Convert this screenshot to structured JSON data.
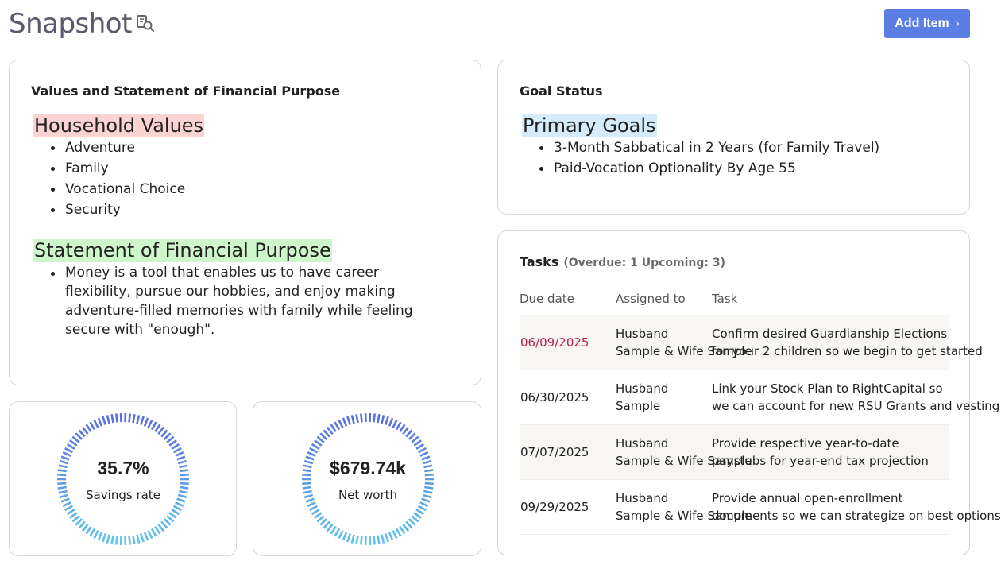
{
  "header": {
    "title": "Snapshot",
    "title_icon": "search-document-icon",
    "add_button_label": "Add Item",
    "add_button_icon": "chevron-right-icon"
  },
  "values_card": {
    "heading": "Values and Statement of Financial Purpose",
    "household_values_title": "Household Values",
    "household_values": [
      "Adventure",
      "Family",
      "Vocational Choice",
      "Security"
    ],
    "purpose_title": "Statement of Financial Purpose",
    "purpose_items": [
      "Money is a tool that enables us to have career flexibility, pursue our hobbies, and enjoy making adventure-filled memories with family while feeling secure with \"enough\"."
    ]
  },
  "goals_card": {
    "heading": "Goal Status",
    "primary_goals_title": "Primary Goals",
    "goals": [
      "3-Month Sabbatical in 2 Years (for Family Travel)",
      "Paid-Vocation Optionality By Age 55"
    ]
  },
  "tasks_card": {
    "heading": "Tasks",
    "summary": "(Overdue: 1  Upcoming: 3)",
    "columns": [
      "Due date",
      "Assigned to",
      "Task"
    ],
    "rows": [
      {
        "due": "06/09/2025",
        "overdue": true,
        "assigned": [
          "Husband",
          "Sample & Wife Sample"
        ],
        "task": [
          "Confirm desired Guardianship Elections",
          "for your 2 children so we begin to get started"
        ]
      },
      {
        "due": "06/30/2025",
        "overdue": false,
        "assigned": [
          "Husband",
          "Sample"
        ],
        "task": [
          "Link your Stock Plan to RightCapital so",
          "we can account for new RSU Grants and vesting"
        ]
      },
      {
        "due": "07/07/2025",
        "overdue": false,
        "assigned": [
          "Husband",
          "Sample & Wife Sample"
        ],
        "task": [
          "Provide respective year-to-date",
          "paystubs for year-end tax projection"
        ]
      },
      {
        "due": "09/29/2025",
        "overdue": false,
        "assigned": [
          "Husband",
          "Sample & Wife Sample"
        ],
        "task": [
          "Provide annual open-enrollment",
          "documents so we can strategize on best options"
        ]
      }
    ]
  },
  "metrics": {
    "savings_rate": {
      "value": "35.7%",
      "label": "Savings rate"
    },
    "net_worth": {
      "value": "$679.74k",
      "label": "Net worth"
    }
  },
  "colors": {
    "accent": "#5b7ee5",
    "overdue": "#b5204c",
    "ring_top": "#5b6fe0",
    "ring_bottom": "#5ec4ea",
    "highlight_red": "#fbd3d1",
    "highlight_green": "#cff5cc",
    "highlight_blue": "#d6ecfb"
  }
}
